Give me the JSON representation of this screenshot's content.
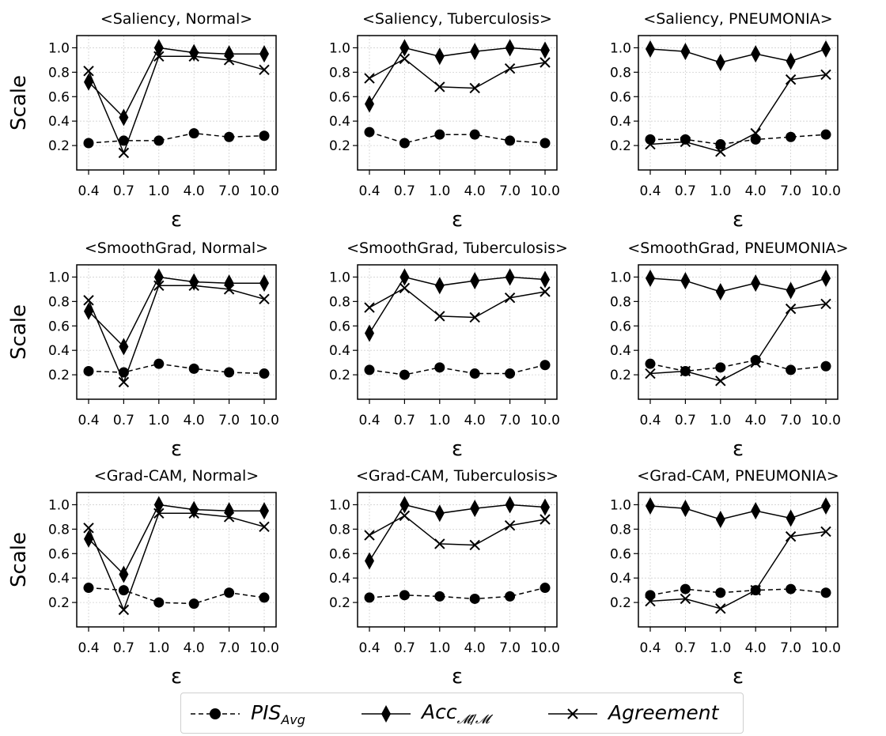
{
  "chart_data": {
    "type": "line",
    "x_categories": [
      "0.4",
      "0.7",
      "1.0",
      "4.0",
      "7.0",
      "10.0"
    ],
    "xlabel": "ε",
    "ylabel": "Scale",
    "yticks": [
      "0.2",
      "0.4",
      "0.6",
      "0.8",
      "1.0"
    ],
    "ylim": [
      0.0,
      1.1
    ],
    "grid": true,
    "legend": {
      "position": "bottom-center",
      "entries": [
        {
          "key": "pis",
          "label": "PIS",
          "sub": "Avg",
          "style": "dashed",
          "marker": "circle"
        },
        {
          "key": "acc",
          "label": "Acc",
          "sub": "𝓜́/𝓜",
          "style": "solid",
          "marker": "diamond"
        },
        {
          "key": "agr",
          "label": "Agreement",
          "sub": "",
          "style": "solid",
          "marker": "x"
        }
      ]
    },
    "panels": [
      {
        "title": "<Saliency, Normal>",
        "pis": [
          0.22,
          0.24,
          0.24,
          0.3,
          0.27,
          0.28
        ],
        "acc": [
          0.72,
          0.43,
          1.0,
          0.96,
          0.95,
          0.95
        ],
        "agr": [
          0.81,
          0.14,
          0.93,
          0.93,
          0.9,
          0.82
        ]
      },
      {
        "title": "<Saliency, Tuberculosis>",
        "pis": [
          0.31,
          0.22,
          0.29,
          0.29,
          0.24,
          0.22
        ],
        "acc": [
          0.54,
          1.0,
          0.93,
          0.97,
          1.0,
          0.98
        ],
        "agr": [
          0.75,
          0.91,
          0.68,
          0.67,
          0.83,
          0.88
        ]
      },
      {
        "title": "<Saliency, PNEUMONIA>",
        "pis": [
          0.25,
          0.25,
          0.21,
          0.25,
          0.27,
          0.29
        ],
        "acc": [
          0.99,
          0.97,
          0.88,
          0.95,
          0.89,
          0.99
        ],
        "agr": [
          0.21,
          0.23,
          0.15,
          0.3,
          0.74,
          0.78
        ]
      },
      {
        "title": "<SmoothGrad, Normal>",
        "pis": [
          0.23,
          0.22,
          0.29,
          0.25,
          0.22,
          0.21
        ],
        "acc": [
          0.72,
          0.43,
          1.0,
          0.96,
          0.95,
          0.95
        ],
        "agr": [
          0.81,
          0.14,
          0.93,
          0.93,
          0.9,
          0.82
        ]
      },
      {
        "title": "<SmoothGrad, Tuberculosis>",
        "pis": [
          0.24,
          0.2,
          0.26,
          0.21,
          0.21,
          0.28
        ],
        "acc": [
          0.54,
          1.0,
          0.93,
          0.97,
          1.0,
          0.98
        ],
        "agr": [
          0.75,
          0.91,
          0.68,
          0.67,
          0.83,
          0.88
        ]
      },
      {
        "title": "<SmoothGrad, PNEUMONIA>",
        "pis": [
          0.29,
          0.23,
          0.26,
          0.32,
          0.24,
          0.27
        ],
        "acc": [
          0.99,
          0.97,
          0.88,
          0.95,
          0.89,
          0.99
        ],
        "agr": [
          0.21,
          0.23,
          0.15,
          0.3,
          0.74,
          0.78
        ]
      },
      {
        "title": "<Grad-CAM, Normal>",
        "pis": [
          0.32,
          0.3,
          0.2,
          0.19,
          0.28,
          0.24
        ],
        "acc": [
          0.72,
          0.43,
          1.0,
          0.96,
          0.95,
          0.95
        ],
        "agr": [
          0.81,
          0.14,
          0.93,
          0.93,
          0.9,
          0.82
        ]
      },
      {
        "title": "<Grad-CAM, Tuberculosis>",
        "pis": [
          0.24,
          0.26,
          0.25,
          0.23,
          0.25,
          0.32
        ],
        "acc": [
          0.54,
          1.0,
          0.93,
          0.97,
          1.0,
          0.98
        ],
        "agr": [
          0.75,
          0.91,
          0.68,
          0.67,
          0.83,
          0.88
        ]
      },
      {
        "title": "<Grad-CAM, PNEUMONIA>",
        "pis": [
          0.26,
          0.31,
          0.28,
          0.3,
          0.31,
          0.28
        ],
        "acc": [
          0.99,
          0.97,
          0.88,
          0.95,
          0.89,
          0.99
        ],
        "agr": [
          0.21,
          0.23,
          0.15,
          0.3,
          0.74,
          0.78
        ]
      }
    ]
  }
}
